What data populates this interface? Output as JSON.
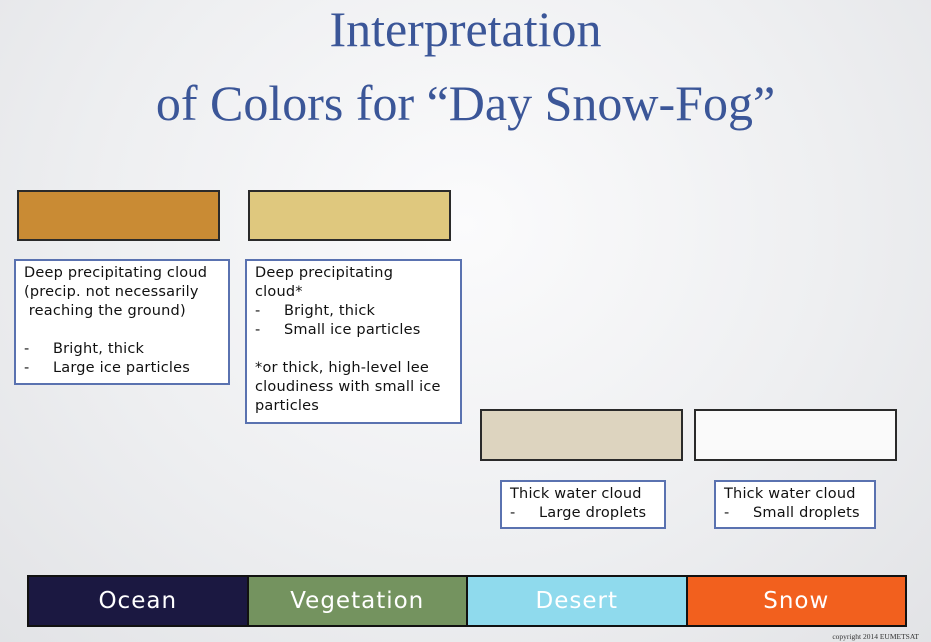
{
  "title": {
    "line1": "Interpretation",
    "line2": "of Colors for “Day Snow-Fog”"
  },
  "colors": {
    "title": "#3b5698",
    "swatch_orange": "#c98b34",
    "swatch_yellow": "#dfc87e",
    "swatch_beige": "#ddd4bf",
    "swatch_white": "#fafafa",
    "ocean": "#1b1841",
    "vegetation": "#74935f",
    "desert": "#8fdaed",
    "snow": "#f2601e",
    "box_border": "#5a72b0"
  },
  "boxes": [
    {
      "lines": [
        "Deep precipitating cloud",
        "(precip. not necessarily",
        " reaching the ground)"
      ],
      "bullets": [
        "Bright, thick",
        "Large ice particles"
      ]
    },
    {
      "lines": [
        "Deep precipitating",
        "cloud*"
      ],
      "bullets": [
        "Bright, thick",
        "Small ice particles"
      ],
      "note": [
        "*or thick, high-level lee",
        "cloudiness with small ice",
        "particles"
      ]
    },
    {
      "lines": [
        "Thick water cloud"
      ],
      "bullets": [
        "Large droplets"
      ]
    },
    {
      "lines": [
        "Thick water cloud"
      ],
      "bullets": [
        "Small droplets"
      ]
    }
  ],
  "bullet_marker": "-",
  "bar": {
    "segments": [
      "Ocean",
      "Vegetation",
      "Desert",
      "Snow"
    ]
  },
  "copyright": "copyright 2014 EUMETSAT"
}
